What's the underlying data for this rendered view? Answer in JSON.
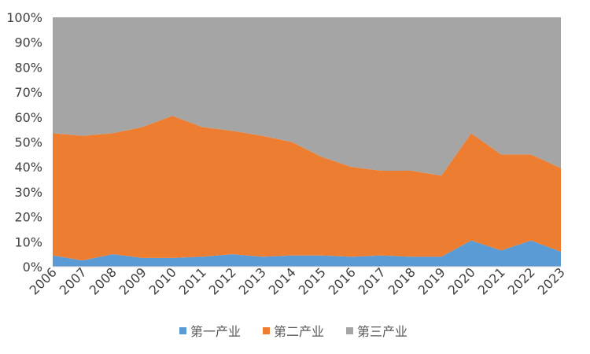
{
  "chart_data": {
    "type": "area",
    "stacked": true,
    "percent": true,
    "categories": [
      "2006",
      "2007",
      "2008",
      "2009",
      "2010",
      "2011",
      "2012",
      "2013",
      "2014",
      "2015",
      "2016",
      "2017",
      "2018",
      "2019",
      "2020",
      "2021",
      "2022",
      "2023"
    ],
    "series": [
      {
        "name": "第一产业",
        "color": "#5b9bd5",
        "values": [
          4.5,
          2.5,
          5.0,
          3.5,
          3.5,
          4.0,
          5.0,
          4.0,
          4.5,
          4.5,
          4.0,
          4.5,
          4.0,
          4.0,
          10.5,
          6.5,
          10.5,
          6.0
        ]
      },
      {
        "name": "第二产业",
        "color": "#ed7d31",
        "values": [
          49.0,
          50.0,
          48.5,
          52.5,
          57.0,
          52.0,
          49.5,
          48.5,
          45.5,
          39.5,
          36.0,
          34.0,
          34.5,
          32.5,
          43.0,
          38.5,
          34.5,
          33.5
        ]
      },
      {
        "name": "第三产业",
        "color": "#a5a5a5",
        "values": [
          46.5,
          47.5,
          46.5,
          44.0,
          39.5,
          44.0,
          45.5,
          47.5,
          50.0,
          56.0,
          60.0,
          61.5,
          61.5,
          63.5,
          46.5,
          55.0,
          55.0,
          60.5
        ]
      }
    ],
    "ylim": [
      0,
      100
    ],
    "yticks": [
      "0%",
      "10%",
      "20%",
      "30%",
      "40%",
      "50%",
      "60%",
      "70%",
      "80%",
      "90%",
      "100%"
    ],
    "grid": false,
    "legend_position": "bottom"
  }
}
